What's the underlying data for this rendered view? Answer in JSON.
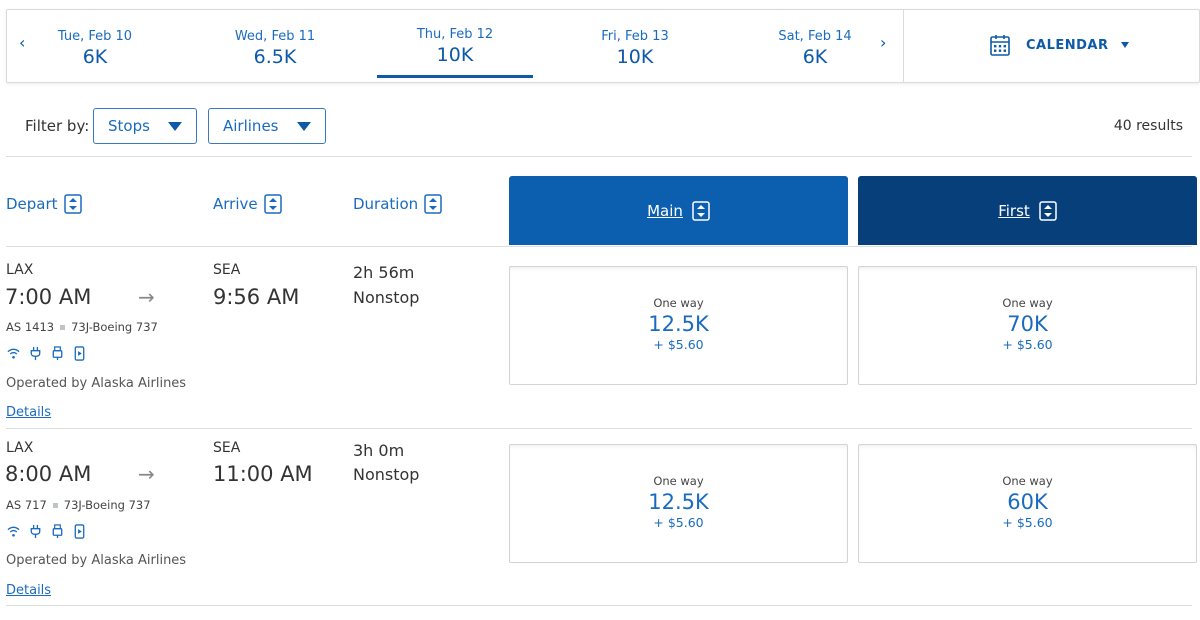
{
  "date_bar": {
    "prev_icon": "chevron-left-icon",
    "next_icon": "chevron-right-icon",
    "days": [
      {
        "label": "Tue, Feb 10",
        "points": "6K",
        "selected": false
      },
      {
        "label": "Wed, Feb 11",
        "points": "6.5K",
        "selected": false
      },
      {
        "label": "Thu, Feb 12",
        "points": "10K",
        "selected": true
      },
      {
        "label": "Fri, Feb 13",
        "points": "10K",
        "selected": false
      },
      {
        "label": "Sat, Feb 14",
        "points": "6K",
        "selected": false
      }
    ],
    "calendar_label": "CALENDAR",
    "calendar_icon": "calendar-icon"
  },
  "filters": {
    "label": "Filter by:",
    "stops": "Stops",
    "airlines": "Airlines",
    "results": "40 results"
  },
  "columns": {
    "depart": "Depart",
    "arrive": "Arrive",
    "duration": "Duration",
    "main": "Main",
    "first": "First"
  },
  "flights": [
    {
      "depart_airport": "LAX",
      "depart_time": "7:00 AM",
      "arrive_airport": "SEA",
      "arrive_time": "9:56 AM",
      "duration": "2h 56m",
      "stops": "Nonstop",
      "flight_number": "AS 1413",
      "aircraft": "73J-Boeing 737",
      "amenities": [
        "wifi-icon",
        "power-outlet-icon",
        "usb-icon",
        "device-entertainment-icon"
      ],
      "operated_by": "Operated by Alaska Airlines",
      "details": "Details",
      "fares": {
        "main": {
          "label": "One way",
          "points": "12.5K",
          "tax": "+ $5.60"
        },
        "first": {
          "label": "One way",
          "points": "70K",
          "tax": "+ $5.60"
        }
      }
    },
    {
      "depart_airport": "LAX",
      "depart_time": "8:00 AM",
      "arrive_airport": "SEA",
      "arrive_time": "11:00 AM",
      "duration": "3h 0m",
      "stops": "Nonstop",
      "flight_number": "AS 717",
      "aircraft": "73J-Boeing 737",
      "amenities": [
        "wifi-icon",
        "power-outlet-icon",
        "usb-icon",
        "device-entertainment-icon"
      ],
      "operated_by": "Operated by Alaska Airlines",
      "details": "Details",
      "fares": {
        "main": {
          "label": "One way",
          "points": "12.5K",
          "tax": "+ $5.60"
        },
        "first": {
          "label": "One way",
          "points": "60K",
          "tax": "+ $5.60"
        }
      }
    }
  ],
  "colors": {
    "accent": "#1a6bbf",
    "main_header": "#0b5fae",
    "first_header": "#073f7a"
  }
}
